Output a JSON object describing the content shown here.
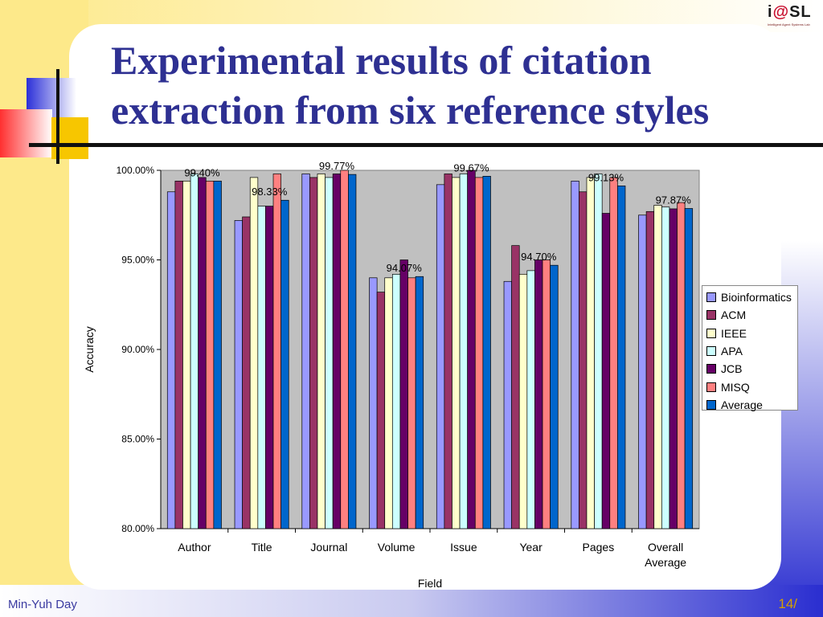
{
  "slide": {
    "title": "Experimental results of citation extraction from six reference styles",
    "footer_left": "Min-Yuh Day",
    "footer_right": "14/",
    "logo_text_prefix": "i",
    "logo_text_at": "@",
    "logo_text_suffix": "SL",
    "logo_subtitle": "Intelligent Agent Systems Lab"
  },
  "colors": {
    "title": "#2e3092",
    "plot_bg": "#c0c0c0",
    "series": [
      "#9999ff",
      "#993366",
      "#ffffcc",
      "#ccffff",
      "#660066",
      "#ff8080",
      "#0066cc"
    ]
  },
  "chart_data": {
    "type": "bar",
    "xlabel": "Field",
    "ylabel": "Accuracy",
    "ylim": [
      80,
      100
    ],
    "yticks": [
      "80.00%",
      "85.00%",
      "90.00%",
      "95.00%",
      "100.00%"
    ],
    "ytick_values": [
      80,
      85,
      90,
      95,
      100
    ],
    "categories": [
      "Author",
      "Title",
      "Journal",
      "Volume",
      "Issue",
      "Year",
      "Pages",
      "Overall Average"
    ],
    "legend_position": "right",
    "grid": false,
    "series": [
      {
        "name": "Bioinformatics",
        "values": [
          98.8,
          97.2,
          99.8,
          94.0,
          99.2,
          93.8,
          99.4,
          97.5
        ]
      },
      {
        "name": "ACM",
        "values": [
          99.4,
          97.4,
          99.6,
          93.2,
          99.8,
          95.8,
          98.8,
          97.7
        ]
      },
      {
        "name": "IEEE",
        "values": [
          99.4,
          99.6,
          99.8,
          94.0,
          99.6,
          94.2,
          99.6,
          98.05
        ]
      },
      {
        "name": "APA",
        "values": [
          99.8,
          98.0,
          99.6,
          94.2,
          99.8,
          94.4,
          99.8,
          97.95
        ]
      },
      {
        "name": "JCB",
        "values": [
          99.6,
          98.0,
          99.8,
          95.0,
          100.0,
          95.0,
          97.6,
          97.85
        ]
      },
      {
        "name": "MISQ",
        "values": [
          99.4,
          99.8,
          100.0,
          94.0,
          99.6,
          95.0,
          99.6,
          98.2
        ]
      },
      {
        "name": "Average",
        "values": [
          99.4,
          98.33,
          99.77,
          94.07,
          99.67,
          94.7,
          99.13,
          97.87
        ]
      }
    ],
    "data_labels": [
      "99.40%",
      "98.33%",
      "99.77%",
      "94.07%",
      "99.67%",
      "94.70%",
      "99.13%",
      "97.87%"
    ]
  }
}
